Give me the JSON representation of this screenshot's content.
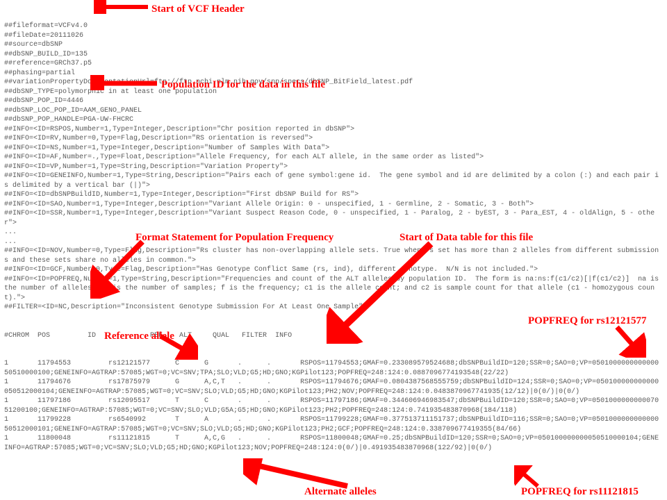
{
  "vcf_lines": [
    "##fileformat=VCFv4.0",
    "##fileDate=20111026",
    "##source=dbSNP",
    "##dbSNP_BUILD_ID=135",
    "##reference=GRCh37.p5",
    "##phasing=partial",
    "##variationPropertyDocumentationUrl=ftp://ftp.ncbi.nlm.nih.gov/snp/specs/dbSNP_BitField_latest.pdf",
    "##dbSNP_TYPE=polymorphic in at least one population",
    "##dbSNP_POP_ID=4446",
    "##dbSNP_LOC_POP_ID=AAM_GENO_PANEL",
    "##dbSNP_POP_HANDLE=PGA-UW-FHCRC",
    "##INFO=<ID=RSPOS,Number=1,Type=Integer,Description=\"Chr position reported in dbSNP\">",
    "##INFO=<ID=RV,Number=0,Type=Flag,Description=\"RS orientation is reversed\">",
    "##INFO=<ID=NS,Number=1,Type=Integer,Description=\"Number of Samples With Data\">",
    "##INFO=<ID=AF,Number=.,Type=Float,Description=\"Allele Frequency, for each ALT allele, in the same order as listed\">",
    "##INFO=<ID=VP,Number=1,Type=String,Description=\"Variation Property\">",
    "##INFO=<ID=GENEINFO,Number=1,Type=String,Description=\"Pairs each of gene symbol:gene id.  The gene symbol and id are delimited by a colon (:) and each pair is delimited by a vertical bar (|)\">",
    "##INFO=<ID=dbSNPBuildID,Number=1,Type=Integer,Description=\"First dbSNP Build for RS\">",
    "##INFO=<ID=SAO,Number=1,Type=Integer,Description=\"Variant Allele Origin: 0 - unspecified, 1 - Germline, 2 - Somatic, 3 - Both\">",
    "##INFO=<ID=SSR,Number=1,Type=Integer,Description=\"Variant Suspect Reason Code, 0 - unspecified, 1 - Paralog, 2 - byEST, 3 - Para_EST, 4 - oldAlign, 5 - other\">",
    "...",
    "...",
    "##INFO=<ID=NOV,Number=0,Type=Flag,Description=\"Rs cluster has non-overlapping allele sets. True when rs set has more than 2 alleles from different submissions and these sets share no alleles in common.\">",
    "##INFO=<ID=GCF,Number=0,Type=Flag,Description=\"Has Genotype Conflict Same (rs, ind), different genotype.  N/N is not included.\">",
    "##INFO=<ID=POPFREQ,Number=1,Type=String,Description=\"Frequencies and count of the ALT alleles by population ID.  The form is na:ns:f(c1/c2)[|f(c1/c2)]  na is the number of alleles; ns is the number of samples; f is the frequency; c1 is the allele count; and c2 is sample count for that allele (c1 - homozygous count).\">",
    "##FILTER=<ID=NC,Description=\"Inconsistent Genotype Submission For At Least One Sample\">"
  ],
  "table_header": "#CHROM  POS         ID             REF    ALT     QUAL   FILTER  INFO",
  "data_rows": [
    "1       11794553         rs12121577      C      G       .      .       RSPOS=11794553;GMAF=0.233089579524688;dbSNPBuildID=120;SSR=0;SAO=0;VP=050100000000000050510000100;GENEINFO=AGTRAP:57085;WGT=0;VC=SNV;TPA;SLO;VLD;G5;HD;GNO;KGPilot123;POPFREQ=248:124:0.0887096774193548(22/22)",
    "1       11794676         rs17875979      G      A,C,T   .      .       RSPOS=11794676;GMAF=0.0804387568555759;dbSNPBuildID=124;SSR=0;SAO=0;VP=050100000000000050512000104;GENEINFO=AGTRAP:57085;WGT=0;VC=SNV;SLO;VLD;G5;HD;GNO;KGPilot123;PH2;NOV;POPFREQ=248:124:0.0483870967741935(12/12)|0(0/)|0(0/)",
    "1       11797186         rs12095517      T      C       .      .       RSPOS=11797186;GMAF=0.344606946983547;dbSNPBuildID=120;SSR=0;SAO=0;VP=050100000000007051200100;GENEINFO=AGTRAP:57085;WGT=0;VC=SNV;SLO;VLD;G5A;G5;HD;GNO;KGPilot123;PH2;POPFREQ=248:124:0.741935483870968(184/118)",
    "1       11799228         rs6540992       T      A       .      .       RSPOS=11799228;GMAF=0.377513711151737;dbSNPBuildID=116;SSR=0;SAO=0;VP=050100000000000050512000101;GENEINFO=AGTRAP:57085;WGT=0;VC=SNV;SLO;VLD;G5;HD;GNO;KGPilot123;PH2;GCF;POPFREQ=248:124:0.338709677419355(84/66)",
    "1       11800048         rs11121815      T      A,C,G   .      .       RSPOS=11800048;GMAF=0.25;dbSNPBuildID=120;SSR=0;SAO=0;VP=050100000000050510000104;GENEINFO=AGTRAP:57085;WGT=0;VC=SNV;SLO;VLD;G5;HD;GNO;KGPilot123;NOV;POPFREQ=248:124:0(0/)|0.491935483870968(122/92)|0(0/)"
  ],
  "annotations": {
    "header_start": "Start of VCF Header",
    "pop_id": "Population ID for the data in this file",
    "format_stmt": "Format Statement for Population Frequency",
    "data_start": "Start of Data table for this file",
    "ref_allele": "Reference allele",
    "popfreq_1": "POPFREQ for rs12121577",
    "alt_alleles": "Alternate alleles",
    "popfreq_2": "POPFREQ for rs11121815"
  },
  "colors": {
    "text": "#595959",
    "annotation": "#ff0000",
    "arrow": "#ff0000",
    "background": "#ffffff"
  }
}
